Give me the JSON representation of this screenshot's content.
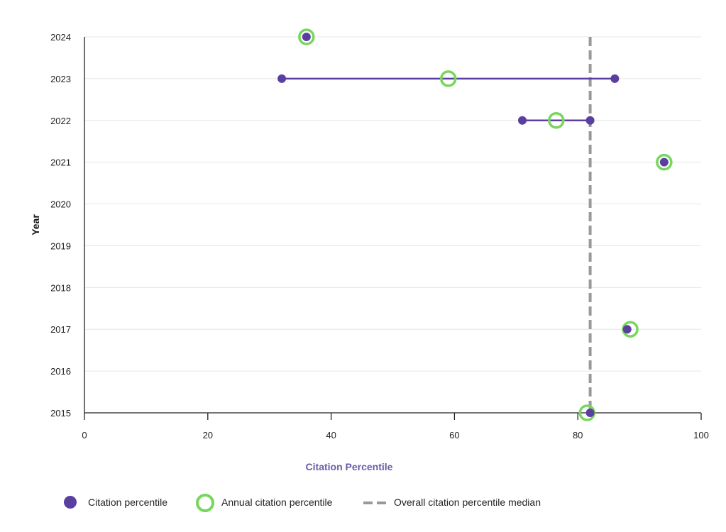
{
  "chart_data": {
    "type": "scatter",
    "xlabel": "Citation Percentile",
    "ylabel": "Year",
    "xlim": [
      0,
      100
    ],
    "ylim": [
      2015,
      2024
    ],
    "x_ticks": [
      0,
      20,
      40,
      60,
      80,
      100
    ],
    "y_ticks": [
      2015,
      2016,
      2017,
      2018,
      2019,
      2020,
      2021,
      2022,
      2023,
      2024
    ],
    "grid": true,
    "legend_position": "bottom",
    "colors": {
      "citation": "#5b3fa0",
      "annual": "#77d65b",
      "median": "#999999",
      "grid": "#e5e5e5",
      "axis": "#222222",
      "xlabel": "#6b5aa5"
    },
    "series": [
      {
        "name": "Citation percentile",
        "marker": "filled-circle",
        "points": [
          {
            "year": 2024,
            "x": 36
          },
          {
            "year": 2023,
            "x": 32
          },
          {
            "year": 2023,
            "x": 86
          },
          {
            "year": 2022,
            "x": 71
          },
          {
            "year": 2022,
            "x": 82
          },
          {
            "year": 2021,
            "x": 94
          },
          {
            "year": 2017,
            "x": 88
          },
          {
            "year": 2015,
            "x": 82
          }
        ]
      },
      {
        "name": "Annual citation percentile",
        "marker": "open-circle",
        "points": [
          {
            "year": 2024,
            "x": 36
          },
          {
            "year": 2023,
            "x": 59
          },
          {
            "year": 2022,
            "x": 76.5
          },
          {
            "year": 2021,
            "x": 94
          },
          {
            "year": 2017,
            "x": 88.5
          },
          {
            "year": 2015,
            "x": 81.5
          }
        ]
      }
    ],
    "ranges": [
      {
        "year": 2023,
        "min": 32,
        "max": 86
      },
      {
        "year": 2022,
        "min": 71,
        "max": 82
      }
    ],
    "median_line": {
      "name": "Overall citation percentile median",
      "x": 82
    },
    "legend": [
      {
        "label": "Citation percentile",
        "marker": "filled-circle"
      },
      {
        "label": "Annual citation percentile",
        "marker": "open-circle"
      },
      {
        "label": "Overall citation percentile median",
        "marker": "dashed-line"
      }
    ]
  }
}
